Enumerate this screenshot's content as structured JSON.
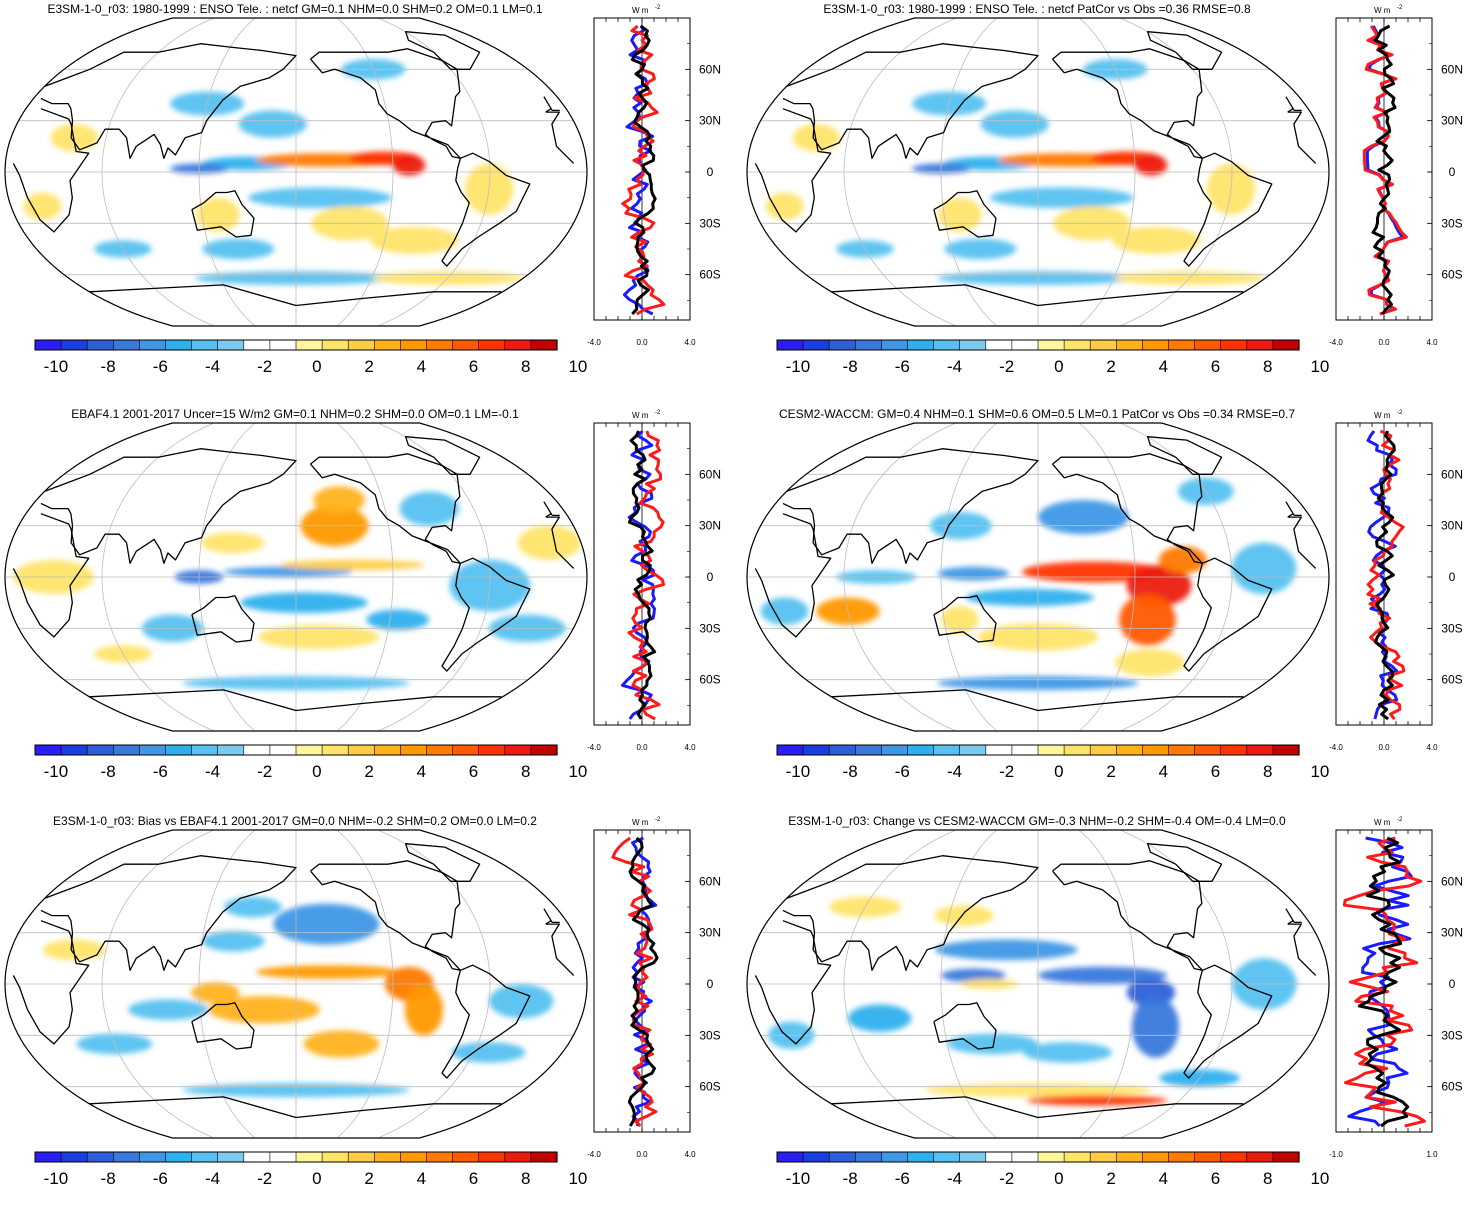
{
  "colorbar": {
    "colors": [
      "#2a1ef5",
      "#1c3de0",
      "#2f5fd8",
      "#3a78db",
      "#3f97e6",
      "#2fb0ee",
      "#56c1f0",
      "#7ccbee",
      "#ffffff",
      "#ffffff",
      "#fff59b",
      "#ffe46a",
      "#ffcc44",
      "#ffb21a",
      "#ff9900",
      "#ff7a00",
      "#ff5a00",
      "#ff3300",
      "#ec1a10",
      "#c30000"
    ],
    "tick_labels": [
      "-10",
      "-8",
      "-6",
      "-4",
      "-2",
      "0",
      "2",
      "4",
      "6",
      "8",
      "10"
    ]
  },
  "profile": {
    "unit_label": "W m",
    "unit_exp": "-2",
    "lat_labels": [
      "60N",
      "30N",
      "0",
      "30S",
      "60S"
    ],
    "colors": {
      "model": "#1a1aff",
      "obs": "#ff1a1a",
      "mean": "#000000"
    }
  },
  "panels": [
    {
      "title": "E3SM-1-0_r03: 1980-1999 : ENSO Tele. : netcf GM=0.1 NHM=0.0 SHM=0.2 OM=0.1 LM=0.1",
      "x_ticks": [
        "-4.0",
        "0.0",
        "4.0"
      ],
      "pattern": "model"
    },
    {
      "title": "E3SM-1-0_r03: 1980-1999 : ENSO Tele. : netcf PatCor vs Obs =0.36 RMSE=0.8",
      "x_ticks": [
        "-4.0",
        "0.0",
        "4.0"
      ],
      "pattern": "model"
    },
    {
      "title": "EBAF4.1 2001-2017 Uncer=15 W/m2 GM=0.1 NHM=0.2 SHM=0.0 OM=0.1 LM=-0.1",
      "x_ticks": [
        "-4.0",
        "0.0",
        "4.0"
      ],
      "pattern": "obs"
    },
    {
      "title": "CESM2-WACCM: GM=0.4 NHM=0.1 SHM=0.6 OM=0.5 LM=0.1 PatCor vs Obs =0.34 RMSE=0.7",
      "x_ticks": [
        "-4.0",
        "0.0",
        "4.0"
      ],
      "pattern": "cesm"
    },
    {
      "title": "E3SM-1-0_r03: Bias vs EBAF4.1 2001-2017 GM=0.0 NHM=-0.2 SHM=0.2 OM=0.0 LM=0.2",
      "x_ticks": [
        "-4.0",
        "0.0",
        "4.0"
      ],
      "pattern": "bias"
    },
    {
      "title": "E3SM-1-0_r03: Change vs CESM2-WACCM GM=-0.3 NHM=-0.2 SHM=-0.4 OM=-0.4 LM=0.0",
      "x_ticks": [
        "-1.0",
        "",
        "1.0"
      ],
      "pattern": "change"
    }
  ]
}
